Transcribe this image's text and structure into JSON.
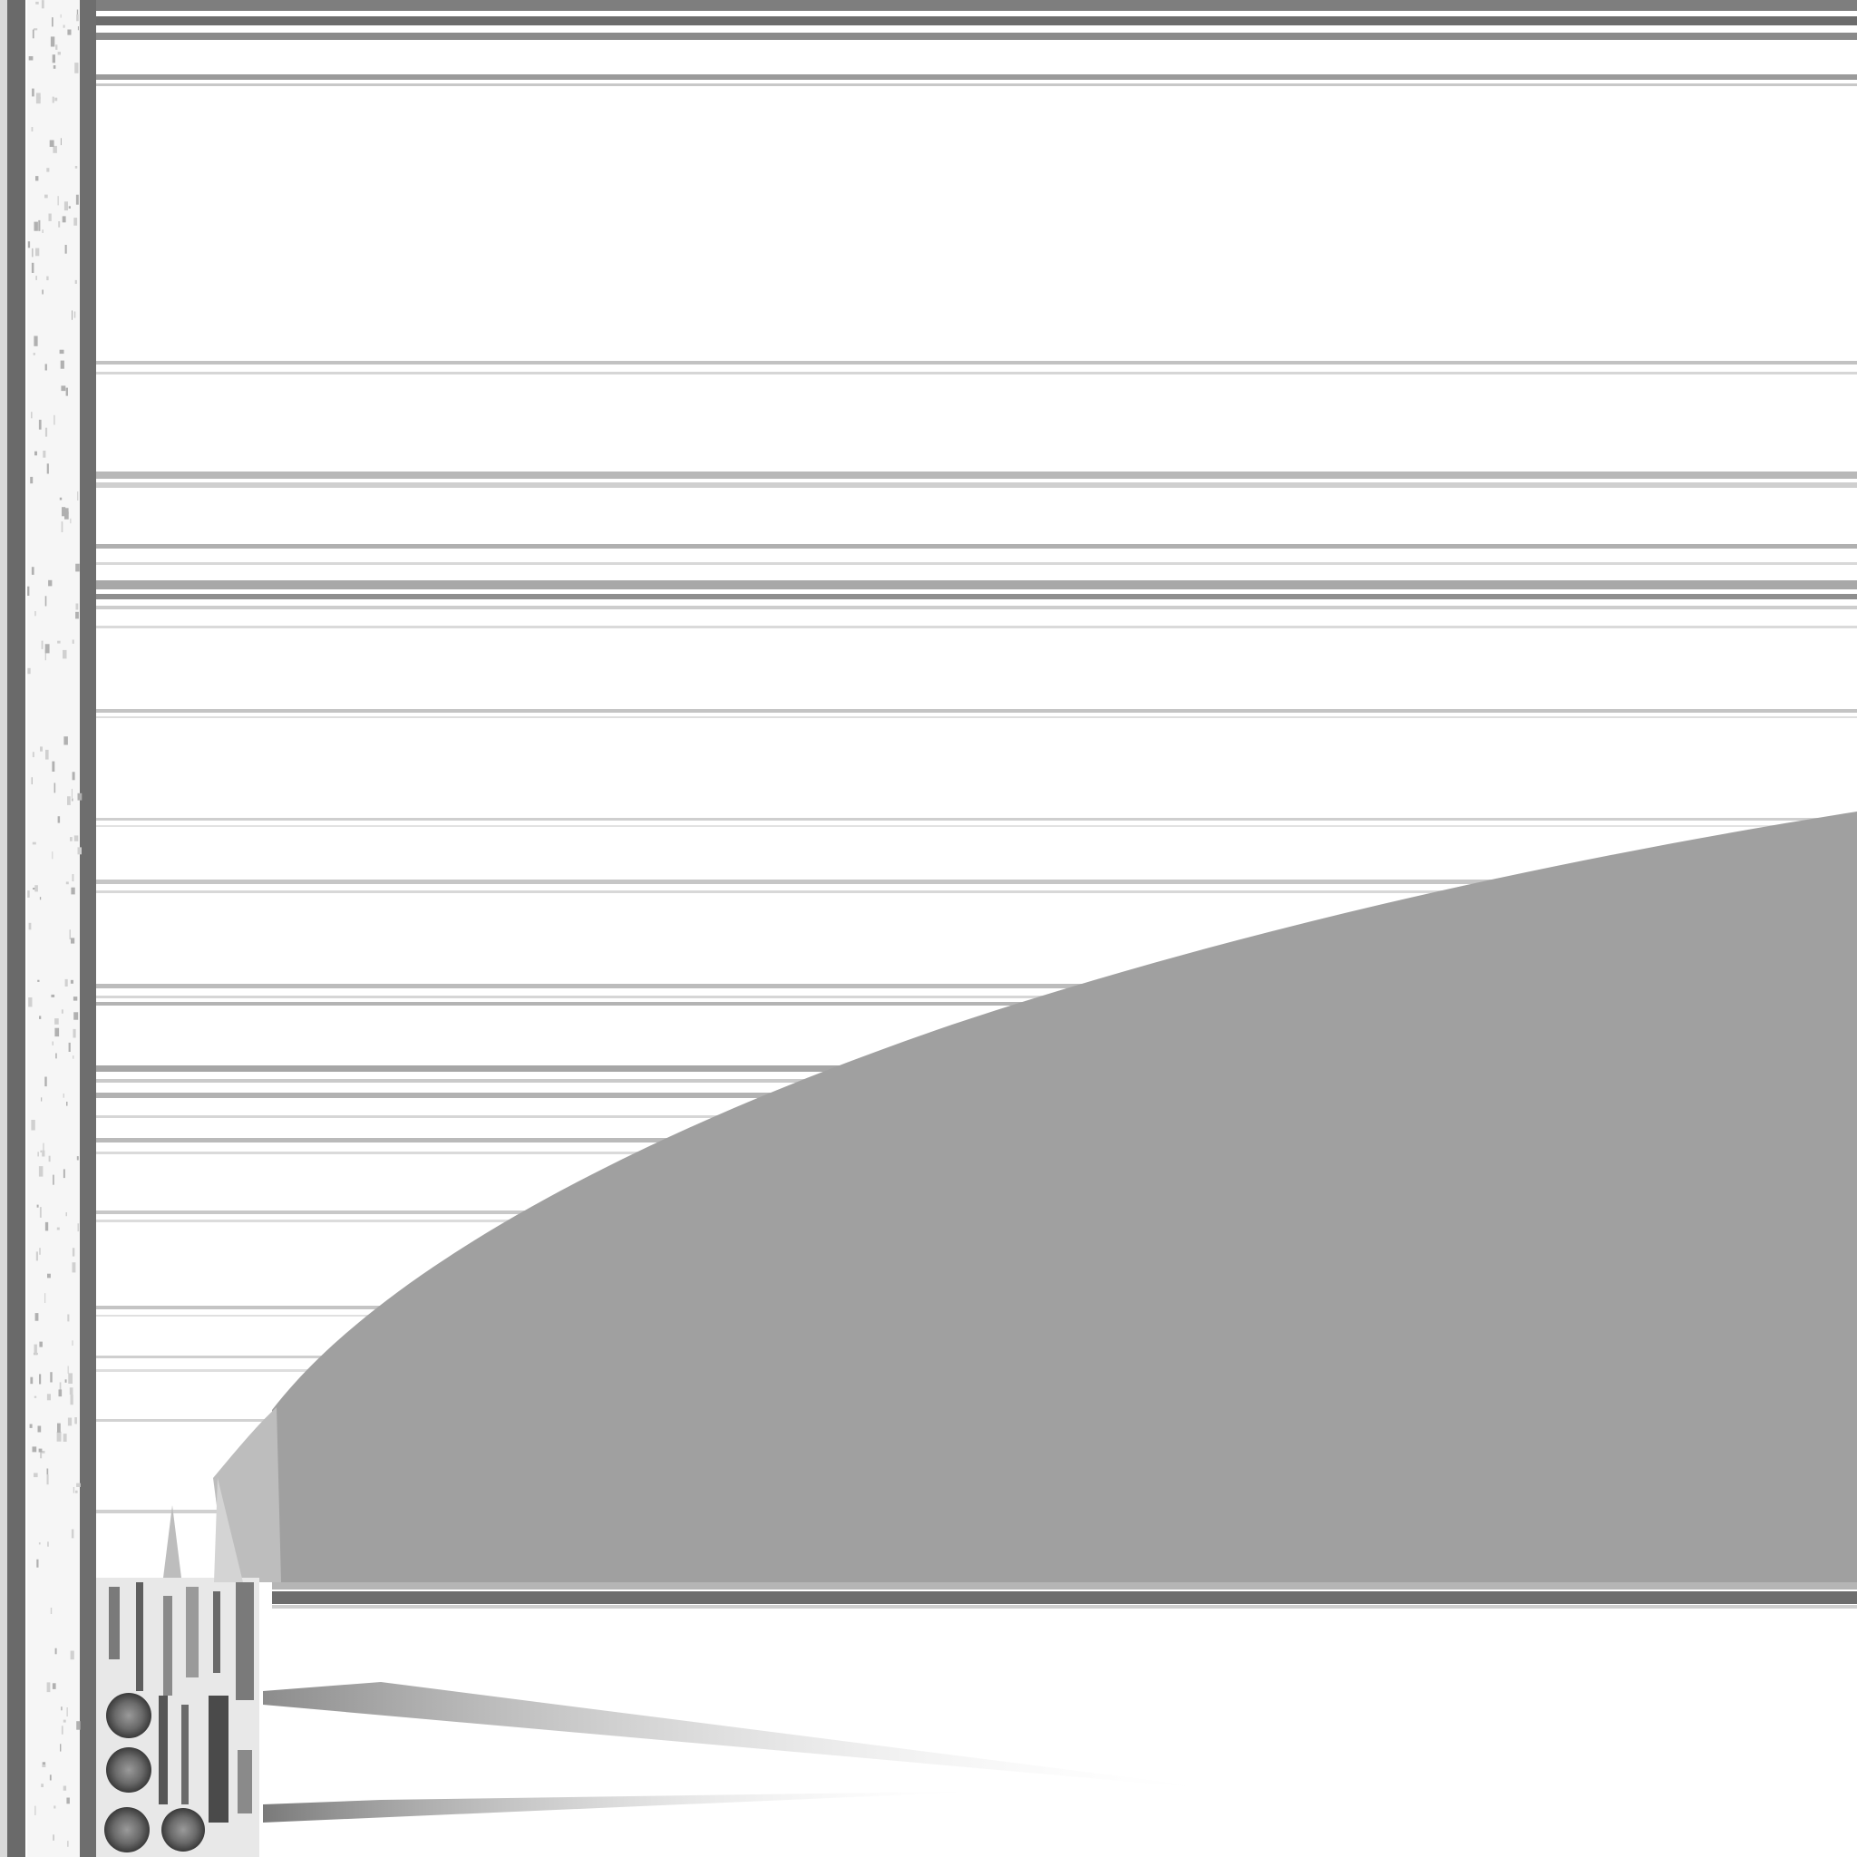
{
  "canvas": {
    "background": "#ffffff",
    "fill_color": "#a0a0a0",
    "border_color": "#707070",
    "streak_color": "#8a8a8a",
    "highlight_color": "#f4f4f4"
  }
}
